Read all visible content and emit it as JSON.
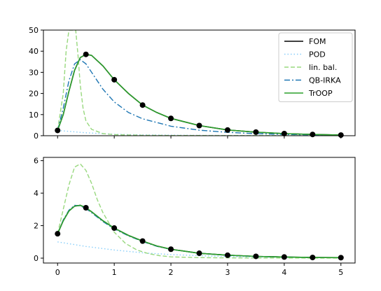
{
  "chart_data": [
    {
      "type": "line",
      "title": "",
      "xlabel": "",
      "ylabel": "",
      "xlim": [
        -0.25,
        5.25
      ],
      "ylim": [
        0,
        50
      ],
      "x_ticks": [
        "0",
        "1",
        "2",
        "3",
        "4",
        "5"
      ],
      "x_tick_labels_visible": false,
      "y_ticks": [
        "0",
        "10",
        "20",
        "30",
        "40",
        "50"
      ],
      "grid": false,
      "legend": "top-right",
      "series": [
        {
          "name": "FOM",
          "color": "#000000",
          "style": "solid",
          "x": [
            0,
            0.1,
            0.2,
            0.3,
            0.4,
            0.5,
            0.6,
            0.8,
            1.0,
            1.25,
            1.5,
            1.75,
            2.0,
            2.5,
            3.0,
            3.5,
            4.0,
            4.5,
            5.0
          ],
          "y": [
            2.5,
            10,
            21,
            31,
            37,
            38.5,
            38,
            33,
            26.5,
            20,
            14.5,
            11,
            8.2,
            4.8,
            2.7,
            1.7,
            1.0,
            0.6,
            0.3
          ]
        },
        {
          "name": "POD",
          "color": "#87cefa",
          "style": "dotted",
          "x": [
            0,
            0.5,
            1.0,
            1.5,
            2.0,
            2.5,
            3.0,
            3.5,
            4.0,
            4.5,
            5.0
          ],
          "y": [
            2.5,
            1.4,
            0.7,
            0.4,
            0.25,
            0.15,
            0.1,
            0.07,
            0.05,
            0.03,
            0.02
          ]
        },
        {
          "name": "lin. bal.",
          "color": "#98d87e",
          "style": "dashed",
          "x": [
            0,
            0.1,
            0.15,
            0.2,
            0.24,
            0.28,
            0.3,
            0.32,
            0.36,
            0.4,
            0.45,
            0.5,
            0.6,
            0.8,
            1.0,
            1.5,
            2.0,
            3.0,
            4.0,
            5.0
          ],
          "y": [
            2.5,
            20,
            40,
            50,
            50,
            50,
            50,
            50,
            38,
            24,
            13,
            7,
            3,
            1,
            0.5,
            0.2,
            0.1,
            0.05,
            0.02,
            0.01
          ]
        },
        {
          "name": "QB-IRKA",
          "color": "#1f77b4",
          "style": "dashdot",
          "x": [
            0,
            0.1,
            0.2,
            0.3,
            0.4,
            0.5,
            0.6,
            0.8,
            1.0,
            1.25,
            1.5,
            2.0,
            2.5,
            3.0,
            3.5,
            4.0,
            4.5,
            5.0
          ],
          "y": [
            2.5,
            13,
            26,
            34,
            36,
            34,
            30,
            22,
            16,
            11,
            8,
            4.5,
            2.6,
            1.6,
            1.0,
            0.6,
            0.4,
            0.25
          ]
        },
        {
          "name": "TrOOP",
          "color": "#2ca02c",
          "style": "solid",
          "x": [
            0,
            0.1,
            0.2,
            0.3,
            0.4,
            0.5,
            0.6,
            0.8,
            1.0,
            1.25,
            1.5,
            1.75,
            2.0,
            2.5,
            3.0,
            3.5,
            4.0,
            4.5,
            5.0
          ],
          "y": [
            2.5,
            10,
            21,
            31,
            37,
            38.5,
            38,
            33,
            26.5,
            20,
            14.5,
            11,
            8.2,
            4.8,
            2.7,
            1.7,
            1.0,
            0.6,
            0.3
          ]
        }
      ],
      "markers": {
        "color": "#000000",
        "x": [
          0,
          0.5,
          1.0,
          1.5,
          2.0,
          2.5,
          3.0,
          3.5,
          4.0,
          4.5,
          5.0
        ],
        "y": [
          2.5,
          38.5,
          26.5,
          14.5,
          8.2,
          4.8,
          2.7,
          1.7,
          1.0,
          0.6,
          0.3
        ]
      }
    },
    {
      "type": "line",
      "title": "",
      "xlabel": "",
      "ylabel": "",
      "xlim": [
        -0.25,
        5.25
      ],
      "ylim": [
        -0.3,
        6.2
      ],
      "x_ticks": [
        "0",
        "1",
        "2",
        "3",
        "4",
        "5"
      ],
      "x_tick_labels_visible": true,
      "y_ticks": [
        "0",
        "2",
        "4",
        "6"
      ],
      "grid": false,
      "legend": "none",
      "series": [
        {
          "name": "FOM",
          "color": "#000000",
          "style": "solid",
          "x": [
            0,
            0.1,
            0.2,
            0.3,
            0.4,
            0.5,
            0.6,
            0.8,
            1.0,
            1.25,
            1.5,
            1.75,
            2.0,
            2.5,
            3.0,
            3.5,
            4.0,
            4.5,
            5.0
          ],
          "y": [
            1.5,
            2.3,
            2.9,
            3.2,
            3.25,
            3.1,
            2.85,
            2.3,
            1.85,
            1.4,
            1.05,
            0.75,
            0.55,
            0.3,
            0.18,
            0.11,
            0.07,
            0.04,
            0.03
          ]
        },
        {
          "name": "POD",
          "color": "#87cefa",
          "style": "dotted",
          "x": [
            0,
            0.5,
            1.0,
            1.5,
            2.0,
            2.5,
            3.0,
            3.5,
            4.0,
            4.5,
            5.0
          ],
          "y": [
            1.0,
            0.72,
            0.5,
            0.33,
            0.22,
            0.15,
            0.1,
            0.07,
            0.05,
            0.035,
            0.025
          ]
        },
        {
          "name": "lin. bal.",
          "color": "#98d87e",
          "style": "dashed",
          "x": [
            0,
            0.1,
            0.2,
            0.3,
            0.4,
            0.5,
            0.6,
            0.7,
            0.8,
            1.0,
            1.2,
            1.4,
            1.6,
            1.8,
            2.0,
            2.5,
            3.0,
            3.5,
            4.0,
            5.0
          ],
          "y": [
            1.5,
            3.0,
            4.5,
            5.6,
            5.8,
            5.4,
            4.6,
            3.6,
            2.8,
            1.6,
            0.9,
            0.5,
            0.28,
            0.15,
            0.08,
            0.03,
            0.02,
            0.01,
            0.01,
            0.0
          ]
        },
        {
          "name": "QB-IRKA",
          "color": "#1f77b4",
          "style": "dashdot",
          "x": [
            0,
            0.1,
            0.2,
            0.3,
            0.4,
            0.5,
            0.6,
            0.8,
            1.0,
            1.25,
            1.5,
            1.75,
            2.0,
            2.5,
            3.0,
            3.5,
            4.0,
            4.5,
            5.0
          ],
          "y": [
            1.5,
            2.35,
            2.95,
            3.25,
            3.22,
            3.05,
            2.8,
            2.25,
            1.8,
            1.37,
            1.02,
            0.73,
            0.54,
            0.3,
            0.18,
            0.11,
            0.07,
            0.04,
            0.03
          ]
        },
        {
          "name": "TrOOP",
          "color": "#2ca02c",
          "style": "solid",
          "x": [
            0,
            0.1,
            0.2,
            0.3,
            0.4,
            0.5,
            0.6,
            0.8,
            1.0,
            1.25,
            1.5,
            1.75,
            2.0,
            2.5,
            3.0,
            3.5,
            4.0,
            4.5,
            5.0
          ],
          "y": [
            1.5,
            2.3,
            2.9,
            3.2,
            3.25,
            3.1,
            2.85,
            2.3,
            1.85,
            1.4,
            1.05,
            0.75,
            0.55,
            0.3,
            0.18,
            0.11,
            0.07,
            0.04,
            0.03
          ]
        }
      ],
      "markers": {
        "color": "#000000",
        "x": [
          0,
          0.5,
          1.0,
          1.5,
          2.0,
          2.5,
          3.0,
          3.5,
          4.0,
          4.5,
          5.0
        ],
        "y": [
          1.5,
          3.1,
          1.85,
          1.05,
          0.55,
          0.3,
          0.18,
          0.11,
          0.07,
          0.04,
          0.03
        ]
      }
    }
  ]
}
